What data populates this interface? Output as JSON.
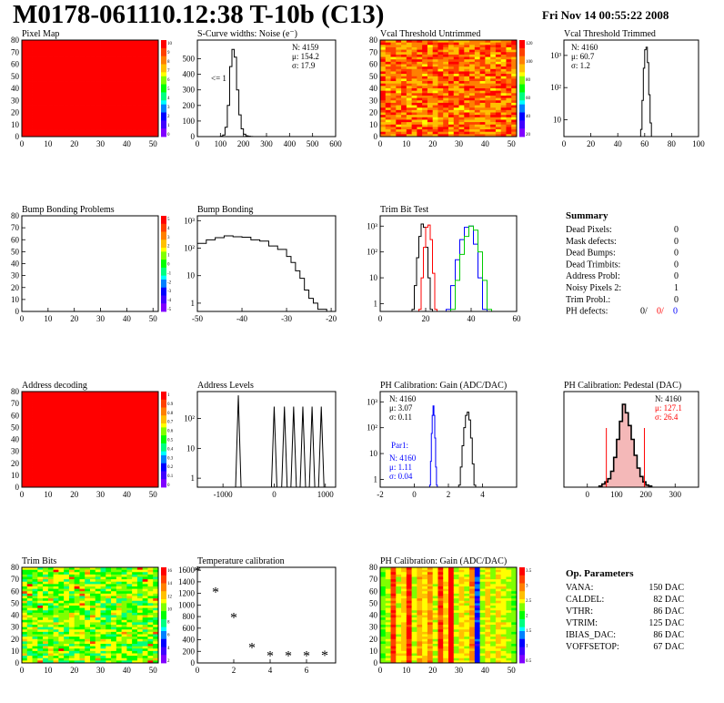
{
  "page": {
    "title": "M0178-061110.12:38 T-10b (C13)",
    "date": "Fri Nov 14 00:55:22 2008"
  },
  "colors": {
    "red": "#ff0000",
    "blue": "#0000ff",
    "green": "#00cc00",
    "black": "#000000",
    "palette": [
      "#7f00ff",
      "#3f00ff",
      "#0000ff",
      "#0080ff",
      "#00ffff",
      "#00ff80",
      "#00ff00",
      "#80ff00",
      "#ffff00",
      "#ffc000",
      "#ff8000",
      "#ff4000",
      "#ff0000"
    ]
  },
  "chart_data": [
    {
      "id": "pixel-map",
      "type": "heatmap",
      "title": "Pixel Map",
      "x_ticks": [
        0,
        10,
        20,
        30,
        40,
        50
      ],
      "y_ticks": [
        0,
        10,
        20,
        30,
        40,
        50,
        60,
        70,
        80
      ],
      "xlim": [
        0,
        52
      ],
      "ylim": [
        0,
        80
      ],
      "fill": "uniform-max",
      "colorbar_ticks": [
        "10",
        "9",
        "8",
        "7",
        "6",
        "5",
        "4",
        "3",
        "2",
        "1",
        "0"
      ]
    },
    {
      "id": "scurve-noise",
      "type": "line",
      "title": "S-Curve widths: Noise (e⁻)",
      "x_ticks": [
        0,
        100,
        200,
        300,
        400,
        500,
        600
      ],
      "y_ticks": [
        0,
        100,
        200,
        300,
        400,
        500
      ],
      "xlim": [
        0,
        600
      ],
      "ylim": [
        0,
        620
      ],
      "stats": [
        "N: 4159",
        "μ: 154.2",
        "σ: 17.9"
      ],
      "annotation": "<= 1",
      "x": [
        100,
        110,
        120,
        130,
        140,
        150,
        160,
        170,
        180,
        190,
        200,
        210,
        220,
        230,
        240,
        250
      ],
      "y": [
        2,
        10,
        60,
        200,
        450,
        560,
        510,
        300,
        140,
        50,
        15,
        5,
        2,
        1,
        0,
        0
      ]
    },
    {
      "id": "vcal-untrimmed",
      "type": "heatmap",
      "title": "Vcal Threshold Untrimmed",
      "x_ticks": [
        0,
        10,
        20,
        30,
        40,
        50
      ],
      "y_ticks": [
        0,
        10,
        20,
        30,
        40,
        50,
        60,
        70,
        80
      ],
      "xlim": [
        0,
        52
      ],
      "ylim": [
        0,
        80
      ],
      "fill": "noise-warm",
      "colorbar_ticks": [
        "120",
        "100",
        "80",
        "60",
        "40",
        "20"
      ]
    },
    {
      "id": "vcal-trimmed",
      "type": "line",
      "title": "Vcal Threshold Trimmed",
      "x_ticks": [
        0,
        20,
        40,
        60,
        80,
        100
      ],
      "y_ticks": [
        "10",
        "10²",
        "10³"
      ],
      "xlim": [
        0,
        100
      ],
      "ylog": true,
      "ylim": [
        3,
        3000
      ],
      "stats": [
        "N: 4160",
        "μ: 60.7",
        "σ: 1.2"
      ],
      "x": [
        57,
        58,
        59,
        60,
        61,
        62,
        63,
        64,
        65
      ],
      "y": [
        5,
        40,
        400,
        1500,
        1800,
        600,
        60,
        8,
        3
      ]
    },
    {
      "id": "bump-problems",
      "type": "heatmap",
      "title": "Bump Bonding Problems",
      "x_ticks": [
        0,
        10,
        20,
        30,
        40,
        50
      ],
      "y_ticks": [
        0,
        10,
        20,
        30,
        40,
        50,
        60,
        70,
        80
      ],
      "xlim": [
        0,
        52
      ],
      "ylim": [
        0,
        80
      ],
      "fill": "empty",
      "colorbar_ticks": [
        "5",
        "4",
        "3",
        "2",
        "1",
        "0",
        "-1",
        "-2",
        "-3",
        "-4",
        "-5"
      ]
    },
    {
      "id": "bump-bonding",
      "type": "line",
      "title": "Bump Bonding",
      "x_ticks": [
        -50,
        -40,
        -30,
        -20
      ],
      "y_ticks": [
        "1",
        "10",
        "10²",
        "10³"
      ],
      "xlim": [
        -50,
        -19
      ],
      "ylog": true,
      "ylim": [
        0.5,
        1500
      ],
      "x": [
        -50,
        -48,
        -46,
        -44,
        -42,
        -40,
        -38,
        -36,
        -34,
        -32,
        -30,
        -29,
        -28,
        -27,
        -26,
        -25,
        -24,
        -23
      ],
      "y": [
        150,
        200,
        240,
        280,
        260,
        250,
        200,
        180,
        120,
        90,
        50,
        30,
        15,
        8,
        3,
        1.5,
        1,
        0.6
      ]
    },
    {
      "id": "trim-bit-test",
      "type": "line",
      "title": "Trim Bit Test",
      "x_ticks": [
        0,
        20,
        40,
        60
      ],
      "y_ticks": [
        "1",
        "10",
        "10²",
        "10³"
      ],
      "xlim": [
        0,
        60
      ],
      "ylog": true,
      "ylim": [
        0.5,
        2500
      ],
      "series": [
        {
          "color": "#000000",
          "x": [
            14,
            15,
            16,
            17,
            18,
            19,
            20,
            21,
            22
          ],
          "y": [
            0.6,
            5,
            60,
            400,
            1200,
            900,
            150,
            10,
            0.6
          ]
        },
        {
          "color": "#ff0000",
          "x": [
            17,
            18,
            19,
            20,
            21,
            22,
            23,
            24
          ],
          "y": [
            0.6,
            10,
            150,
            900,
            1100,
            300,
            15,
            0.6
          ]
        },
        {
          "color": "#0000ff",
          "x": [
            29,
            31,
            33,
            35,
            37,
            39,
            41,
            43,
            45
          ],
          "y": [
            0.6,
            5,
            50,
            300,
            900,
            1000,
            200,
            10,
            0.6
          ]
        },
        {
          "color": "#00cc00",
          "x": [
            31,
            33,
            35,
            37,
            39,
            41,
            43,
            45,
            47
          ],
          "y": [
            0.6,
            8,
            80,
            400,
            1000,
            700,
            100,
            8,
            0.6
          ]
        }
      ]
    },
    {
      "id": "address-decoding",
      "type": "heatmap",
      "title": "Address decoding",
      "x_ticks": [
        0,
        10,
        20,
        30,
        40,
        50
      ],
      "y_ticks": [
        0,
        10,
        20,
        30,
        40,
        50,
        60,
        70,
        80
      ],
      "xlim": [
        0,
        52
      ],
      "ylim": [
        0,
        80
      ],
      "fill": "uniform-max",
      "colorbar_ticks": [
        "1",
        "0.9",
        "0.8",
        "0.7",
        "0.6",
        "0.5",
        "0.4",
        "0.3",
        "0.2",
        "0.1",
        "0"
      ]
    },
    {
      "id": "address-levels",
      "type": "line",
      "title": "Address Levels",
      "x_ticks": [
        -1000,
        0,
        1000
      ],
      "y_ticks": [
        "1",
        "10",
        "10²"
      ],
      "xlim": [
        -1500,
        1200
      ],
      "ylog": true,
      "ylim": [
        0.5,
        800
      ],
      "peaks": [
        {
          "x": -700,
          "h": 600
        },
        {
          "x": 0,
          "h": 250
        },
        {
          "x": 200,
          "h": 250
        },
        {
          "x": 380,
          "h": 250
        },
        {
          "x": 560,
          "h": 250
        },
        {
          "x": 740,
          "h": 250
        },
        {
          "x": 920,
          "h": 250
        }
      ]
    },
    {
      "id": "ph-gain",
      "type": "line",
      "title": "PH Calibration: Gain (ADC/DAC)",
      "x_ticks": [
        -2,
        0,
        2,
        4
      ],
      "y_ticks": [
        "1",
        "10",
        "10²",
        "10³"
      ],
      "xlim": [
        -2,
        6
      ],
      "ylog": true,
      "ylim": [
        0.5,
        2500
      ],
      "stats": [
        "N: 4160",
        "μ: 3.07",
        "σ: 0.11"
      ],
      "stats2_title": "Par1:",
      "stats2": [
        "N: 4160",
        "μ: 1.11",
        "σ: 0.04"
      ],
      "series": [
        {
          "color": "#0000ff",
          "x": [
            0.9,
            0.95,
            1.0,
            1.05,
            1.1,
            1.15,
            1.2,
            1.25,
            1.3
          ],
          "y": [
            0.6,
            5,
            60,
            300,
            700,
            300,
            40,
            3,
            0.6
          ]
        },
        {
          "color": "#000000",
          "x": [
            2.6,
            2.7,
            2.8,
            2.9,
            3.0,
            3.1,
            3.2,
            3.3,
            3.4,
            3.5
          ],
          "y": [
            0.6,
            3,
            20,
            100,
            300,
            400,
            200,
            40,
            4,
            0.6
          ]
        }
      ]
    },
    {
      "id": "ph-pedestal",
      "type": "line",
      "title": "PH Calibration: Pedestal (DAC)",
      "x_ticks": [
        0,
        100,
        200,
        300
      ],
      "y_ticks": [],
      "xlim": [
        -80,
        380
      ],
      "ylim": [
        0,
        90
      ],
      "stats": [
        "N: 4160",
        "μ: 127.1",
        "σ: 26.4"
      ],
      "x": [
        40,
        50,
        60,
        70,
        80,
        90,
        100,
        110,
        120,
        130,
        140,
        150,
        160,
        170,
        180,
        190,
        200,
        210
      ],
      "y": [
        1,
        3,
        5,
        8,
        15,
        28,
        45,
        62,
        78,
        70,
        58,
        45,
        30,
        18,
        10,
        5,
        2,
        1
      ],
      "markers": [
        65,
        195
      ]
    },
    {
      "id": "trim-bits",
      "type": "heatmap",
      "title": "Trim Bits",
      "x_ticks": [
        0,
        10,
        20,
        30,
        40,
        50
      ],
      "y_ticks": [
        0,
        10,
        20,
        30,
        40,
        50,
        60,
        70,
        80
      ],
      "xlim": [
        0,
        52
      ],
      "ylim": [
        0,
        80
      ],
      "fill": "noise-green",
      "colorbar_ticks": [
        "16",
        "14",
        "12",
        "10",
        "8",
        "6",
        "4",
        "2"
      ]
    },
    {
      "id": "temperature-calibration",
      "type": "scatter",
      "title": "Temperature calibration",
      "x_ticks": [
        0,
        2,
        4,
        6
      ],
      "y_ticks": [
        0,
        200,
        400,
        600,
        800,
        1000,
        1200,
        1400,
        1600
      ],
      "xlim": [
        0,
        7.6
      ],
      "ylim": [
        0,
        1650
      ],
      "x": [
        0,
        1,
        2,
        3,
        4,
        5,
        6,
        7
      ],
      "y": [
        1560,
        1200,
        760,
        240,
        100,
        100,
        100,
        110
      ]
    },
    {
      "id": "ph-gain-map",
      "type": "heatmap",
      "title": "PH Calibration: Gain (ADC/DAC)",
      "x_ticks": [
        0,
        10,
        20,
        30,
        40,
        50
      ],
      "y_ticks": [
        0,
        10,
        20,
        30,
        40,
        50,
        60,
        70,
        80
      ],
      "xlim": [
        0,
        52
      ],
      "ylim": [
        0,
        80
      ],
      "fill": "column-bands",
      "colorbar_ticks": [
        "3.5",
        "3",
        "2.5",
        "2",
        "1.5",
        "1",
        "0.5"
      ]
    }
  ],
  "summary": {
    "title": "Summary",
    "rows": [
      {
        "label": "Dead Pixels:",
        "value": "0"
      },
      {
        "label": "Mask defects:",
        "value": "0"
      },
      {
        "label": "Dead Bumps:",
        "value": "0"
      },
      {
        "label": "Dead Trimbits:",
        "value": "0"
      },
      {
        "label": "Address Probl:",
        "value": "0"
      },
      {
        "label": "Noisy Pixels 2:",
        "value": "1"
      },
      {
        "label": "Trim Probl.:",
        "value": "0"
      }
    ],
    "ph_defects": {
      "label": "PH defects:",
      "v1": "0/",
      "v2": "0/",
      "v3": "0"
    }
  },
  "op_params": {
    "title": "Op. Parameters",
    "rows": [
      {
        "name": "VANA:",
        "value": "150 DAC"
      },
      {
        "name": "CALDEL:",
        "value": "82 DAC"
      },
      {
        "name": "VTHR:",
        "value": "86 DAC"
      },
      {
        "name": "VTRIM:",
        "value": "125 DAC"
      },
      {
        "name": "IBIAS_DAC:",
        "value": "86 DAC"
      },
      {
        "name": "VOFFSETOP:",
        "value": "67 DAC"
      }
    ]
  }
}
